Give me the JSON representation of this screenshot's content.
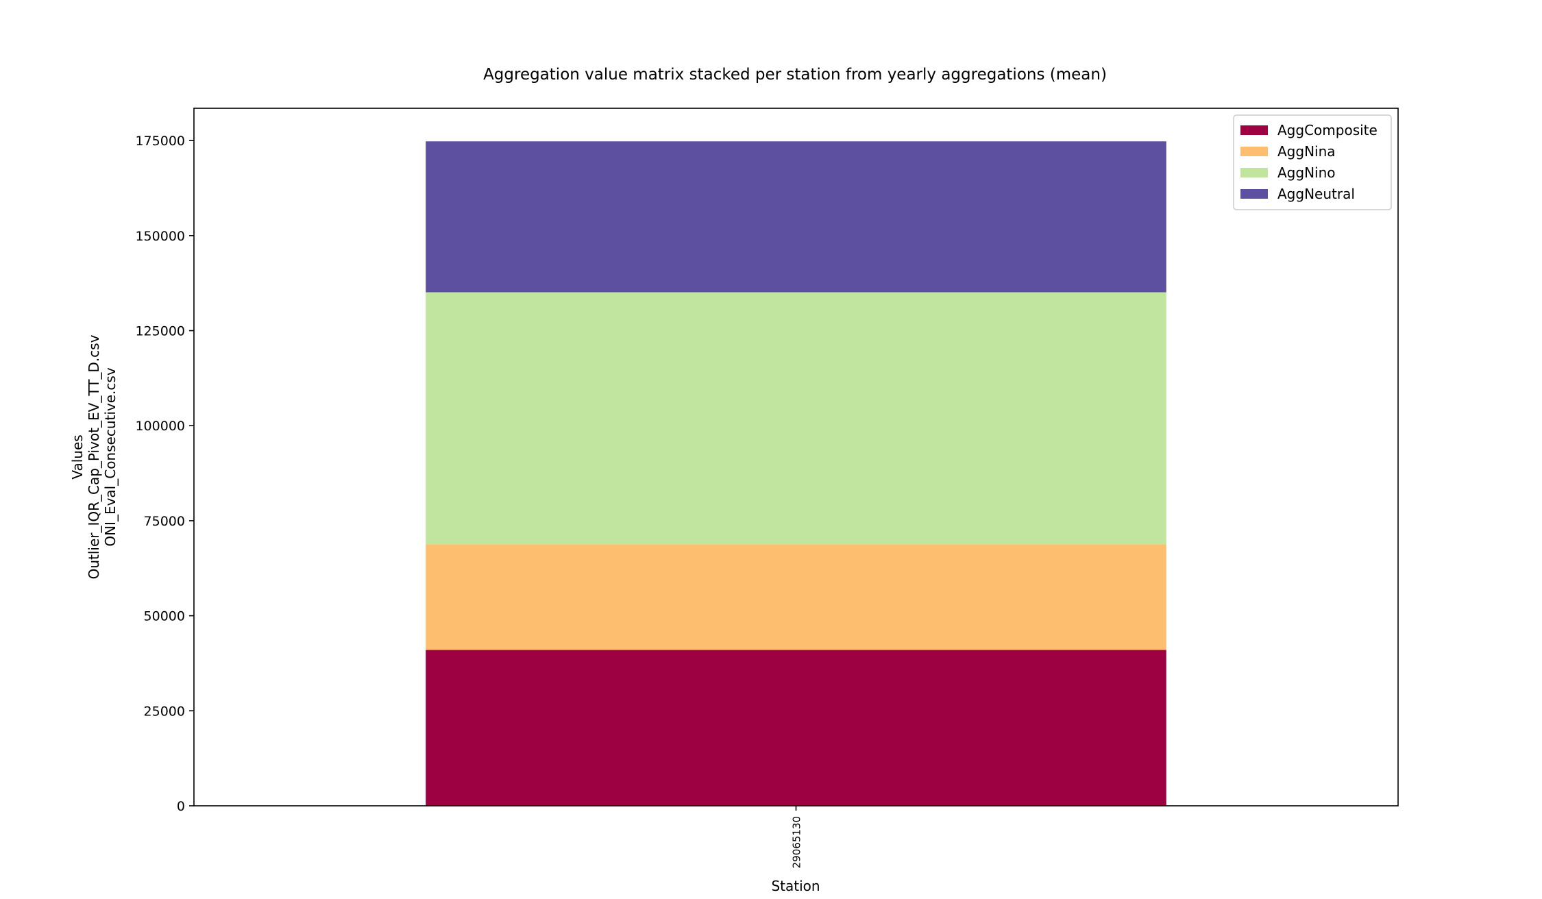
{
  "chart_data": {
    "type": "bar",
    "stacked": true,
    "title": "Aggregation value matrix stacked per station from yearly aggregations (mean)",
    "xlabel": "Station",
    "ylabel_lines": [
      "Values",
      "Outlier_IQR_Cap_Pivot_EV_TT_D.csv",
      "ONI_Eval_Consecutive.csv"
    ],
    "categories": [
      "29065130"
    ],
    "series": [
      {
        "name": "AggComposite",
        "color": "#9e0142",
        "values": [
          41000
        ]
      },
      {
        "name": "AggNina",
        "color": "#fdbe70",
        "values": [
          27800
        ]
      },
      {
        "name": "AggNino",
        "color": "#c1e59e",
        "values": [
          66300
        ]
      },
      {
        "name": "AggNeutral",
        "color": "#5e50a1",
        "values": [
          39700
        ]
      }
    ],
    "ylim": [
      0,
      183500
    ],
    "yticks": [
      0,
      25000,
      50000,
      75000,
      100000,
      125000,
      150000,
      175000
    ],
    "legend_position": "top-right",
    "grid": false
  }
}
